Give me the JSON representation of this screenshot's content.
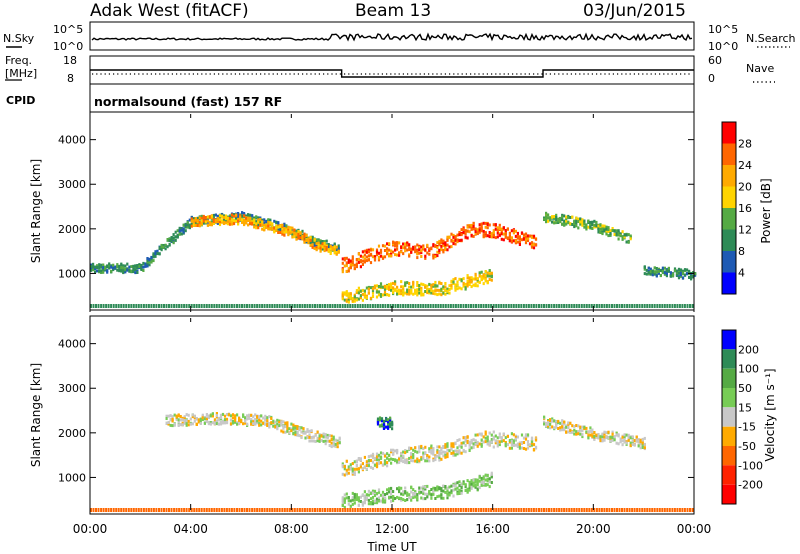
{
  "header": {
    "station": "Adak West (fitACF)",
    "beam": "Beam 13",
    "date": "03/Jun/2015"
  },
  "params": {
    "left_row1": "N.Sky",
    "left_row2_a": "Freq.",
    "left_row2_b": "[MHz]",
    "left_row3": "CPID",
    "right_row1": "N.Search",
    "right_row2": "Nave",
    "cpid_text": "normalsound (fast) 157 RF",
    "nsky_ticks": [
      "10^5",
      "10^0"
    ],
    "nsearch_ticks": [
      "10^5",
      "10^0"
    ],
    "freq_ticks": [
      "18",
      "8"
    ],
    "nave_ticks": [
      "60",
      "0"
    ],
    "freq_steps": [
      {
        "from": "00:00",
        "to": "10:00",
        "value": 13
      },
      {
        "from": "10:00",
        "to": "18:00",
        "value": 10.5
      },
      {
        "from": "18:00",
        "to": "24:00",
        "value": 13
      }
    ]
  },
  "chart_data": [
    {
      "type": "heatmap",
      "name": "power",
      "ylabel": "Slant Range [km]",
      "y_ticks": [
        "4000",
        "3000",
        "2000",
        "1000"
      ],
      "y_tick_values": [
        4000,
        3000,
        2000,
        1000
      ],
      "ylim": [
        180,
        4620
      ],
      "xlim": [
        0,
        24
      ],
      "colorbar": {
        "label": "Power [dB]",
        "ticks": [
          "28",
          "24",
          "20",
          "16",
          "12",
          "8",
          "4"
        ],
        "colors": [
          "#ff0000",
          "#ff6600",
          "#ffaa00",
          "#ffd400",
          "#55aa44",
          "#2e8b57",
          "#1e5ab4",
          "#0000ff"
        ]
      },
      "bands": [
        {
          "t": [
            0,
            2,
            4,
            6,
            8,
            9,
            9.9
          ],
          "r": [
            1150,
            1150,
            2200,
            2300,
            2000,
            1700,
            1600
          ],
          "w": 200,
          "level": 2
        },
        {
          "t": [
            4,
            6,
            8,
            9,
            9.9
          ],
          "r": [
            2200,
            2250,
            1950,
            1650,
            1500
          ],
          "w": 220,
          "level": 5
        },
        {
          "t": [
            10,
            12,
            13.5,
            15,
            16,
            17.7
          ],
          "r": [
            1200,
            1600,
            1500,
            2000,
            2000,
            1700
          ],
          "w": 320,
          "level": 6
        },
        {
          "t": [
            10,
            12,
            14,
            16
          ],
          "r": [
            500,
            700,
            700,
            1000
          ],
          "w": 300,
          "level": 4
        },
        {
          "t": [
            18,
            20,
            21.5
          ],
          "r": [
            2300,
            2100,
            1800
          ],
          "w": 220,
          "level": 3
        },
        {
          "t": [
            22,
            24
          ],
          "r": [
            1100,
            1000
          ],
          "w": 200,
          "level": 2
        }
      ]
    },
    {
      "type": "heatmap",
      "name": "velocity",
      "ylabel": "Slant Range [km]",
      "y_ticks": [
        "4000",
        "3000",
        "2000",
        "1000"
      ],
      "y_tick_values": [
        4000,
        3000,
        2000,
        1000
      ],
      "ylim": [
        180,
        4620
      ],
      "xlim": [
        0,
        24
      ],
      "colorbar": {
        "label": "Velocity [m s⁻¹]",
        "ticks": [
          "200",
          "100",
          "50",
          "15",
          "-15",
          "-50",
          "-100",
          "-200"
        ],
        "colors": [
          "#0000ff",
          "#2e8b57",
          "#55aa44",
          "#77cc55",
          "#c8c8c8",
          "#ffaa00",
          "#ff6600",
          "#ff2200",
          "#ff0000"
        ]
      },
      "bands": [
        {
          "t": [
            3,
            5,
            7,
            8.5,
            9.9
          ],
          "r": [
            2300,
            2350,
            2300,
            2000,
            1800
          ],
          "w": 250,
          "level": 4
        },
        {
          "t": [
            10,
            12,
            14,
            15.5,
            17.7
          ],
          "r": [
            1200,
            1500,
            1600,
            1900,
            1800
          ],
          "w": 350,
          "level": 4
        },
        {
          "t": [
            10,
            12,
            14,
            16
          ],
          "r": [
            500,
            650,
            700,
            1000
          ],
          "w": 300,
          "level": 5
        },
        {
          "t": [
            18,
            20,
            22
          ],
          "r": [
            2300,
            2000,
            1800
          ],
          "w": 250,
          "level": 4
        },
        {
          "t": [
            11.4
          ],
          "r": [
            2250
          ],
          "w": 250,
          "level": 7
        }
      ]
    }
  ],
  "x_axis": {
    "ticks": [
      "00:00",
      "04:00",
      "08:00",
      "12:00",
      "16:00",
      "20:00",
      "00:00"
    ],
    "label": "Time UT"
  }
}
